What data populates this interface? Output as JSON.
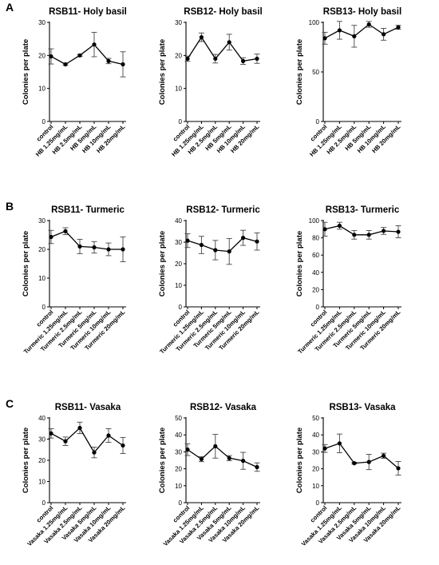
{
  "panel_labels": [
    "A",
    "B",
    "C"
  ],
  "chart_data": [
    {
      "type": "line",
      "panel": "A",
      "title": "RSB11- Holy basil",
      "ylabel": "Colonies per plate",
      "ylim": [
        0,
        30
      ],
      "yticks": [
        0,
        10,
        20,
        30
      ],
      "categories": [
        "control",
        "HB 1.25mg/mL",
        "HB 2.5mg/mL",
        "HB 5mg/mL",
        "HB 10mg/mL",
        "HB 20mg/mL"
      ],
      "values": [
        19.7,
        17.3,
        20.0,
        23.3,
        18.3,
        17.3
      ],
      "errors": [
        2.3,
        0.3,
        0.3,
        3.7,
        0.8,
        3.8
      ]
    },
    {
      "type": "line",
      "panel": "A",
      "title": "RSB12- Holy basil",
      "ylabel": "Colonies per plate",
      "ylim": [
        0,
        30
      ],
      "yticks": [
        0,
        10,
        20,
        30
      ],
      "categories": [
        "control",
        "HB 1.25mg/mL",
        "HB 2.5mg/mL",
        "HB 5mg/mL",
        "HB 10mg/mL",
        "HB 20mg/mL"
      ],
      "values": [
        19.0,
        25.5,
        19.0,
        24.0,
        18.3,
        19.0
      ],
      "errors": [
        0.8,
        1.3,
        1.3,
        2.4,
        1.0,
        1.4
      ]
    },
    {
      "type": "line",
      "panel": "A",
      "title": "RSB13- Holy basil",
      "ylabel": "Colonies per plate",
      "ylim": [
        0,
        100
      ],
      "yticks": [
        0,
        50,
        100
      ],
      "categories": [
        "control",
        "HB 1.25mg/mL",
        "HB 2.5mg/mL",
        "HB 5mg/mL",
        "HB 10mg/mL",
        "HB 20mg/mL"
      ],
      "values": [
        84,
        92,
        86,
        98,
        88,
        95
      ],
      "errors": [
        6,
        9,
        11,
        3,
        6,
        2
      ]
    },
    {
      "type": "line",
      "panel": "B",
      "title": "RSB11- Turmeric",
      "ylabel": "Colonies per plate",
      "ylim": [
        0,
        30
      ],
      "yticks": [
        0,
        10,
        20,
        30
      ],
      "categories": [
        "control",
        "Turmeric 1.25mg/mL",
        "Turmeric 2.5mg/mL",
        "Turmeric 5mg/mL",
        "Turmeric 10mg/mL",
        "Turmeric 20mg/mL"
      ],
      "values": [
        24.3,
        26.3,
        21.0,
        20.7,
        20.0,
        20.0
      ],
      "errors": [
        2.3,
        1.2,
        2.5,
        2.0,
        2.2,
        4.3
      ]
    },
    {
      "type": "line",
      "panel": "B",
      "title": "RSB12- Turmeric",
      "ylabel": "Colonies per plate",
      "ylim": [
        0,
        40
      ],
      "yticks": [
        0,
        10,
        20,
        30,
        40
      ],
      "categories": [
        "control",
        "Turmeric 1.25mg/mL",
        "Turmeric 2.5mg/mL",
        "Turmeric 5mg/mL",
        "Turmeric 10mg/mL",
        "Turmeric 20mg/mL"
      ],
      "values": [
        30.7,
        28.7,
        26.3,
        25.7,
        32.0,
        30.3
      ],
      "errors": [
        3.2,
        4.0,
        4.5,
        6.0,
        3.5,
        4.0
      ]
    },
    {
      "type": "line",
      "panel": "B",
      "title": "RSB13- Turmeric",
      "ylabel": "Colonies per plate",
      "ylim": [
        0,
        100
      ],
      "yticks": [
        0,
        20,
        40,
        60,
        80,
        100
      ],
      "categories": [
        "control",
        "Turmeric 1.25mg/mL",
        "Turmeric 2.5mg/mL",
        "Turmeric 5mg/mL",
        "Turmeric 10mg/mL",
        "Turmeric 20mg/mL"
      ],
      "values": [
        90,
        94,
        83.5,
        83.5,
        88,
        87
      ],
      "errors": [
        8,
        4,
        5,
        5,
        4,
        7
      ]
    },
    {
      "type": "line",
      "panel": "C",
      "title": "RSB11- Vasaka",
      "ylabel": "Colonies per plate",
      "ylim": [
        0,
        40
      ],
      "yticks": [
        0,
        10,
        20,
        30,
        40
      ],
      "categories": [
        "control",
        "Vasaka 1.25mg/mL",
        "Vasaka 2.5mg/mL",
        "Vasaka 5mg/mL",
        "Vasaka 10mg/mL",
        "Vasaka 20mg/mL"
      ],
      "values": [
        32.7,
        29.0,
        35.3,
        23.7,
        31.7,
        27.0
      ],
      "errors": [
        2.2,
        2.0,
        2.7,
        2.5,
        3.2,
        3.8
      ]
    },
    {
      "type": "line",
      "panel": "C",
      "title": "RSB12- Vasaka",
      "ylabel": "Colonies per plate",
      "ylim": [
        0,
        50
      ],
      "yticks": [
        0,
        10,
        20,
        30,
        40,
        50
      ],
      "categories": [
        "control",
        "Vasaka 1.25mg/mL",
        "Vasaka 2.5mg/mL",
        "Vasaka 5mg/mL",
        "Vasaka 10mg/mL",
        "Vasaka 20mg/mL"
      ],
      "values": [
        31.3,
        25.7,
        33.3,
        26.3,
        24.7,
        21.0
      ],
      "errors": [
        3.5,
        1.5,
        7.0,
        1.5,
        5.0,
        2.5
      ]
    },
    {
      "type": "line",
      "panel": "C",
      "title": "RSB13- Vasaka",
      "ylabel": "Colonies per plate",
      "ylim": [
        0,
        50
      ],
      "yticks": [
        0,
        10,
        20,
        30,
        40,
        50
      ],
      "categories": [
        "control",
        "Vasaka 1.25mg/mL",
        "Vasaka 2.5mg/mL",
        "Vasaka 5mg/mL",
        "Vasaka 10mg/mL",
        "Vasaka 20mg/mL"
      ],
      "values": [
        32.0,
        35.0,
        23.3,
        24.0,
        27.7,
        20.3
      ],
      "errors": [
        2.3,
        5.5,
        0.5,
        4.5,
        1.5,
        4.0
      ]
    }
  ]
}
